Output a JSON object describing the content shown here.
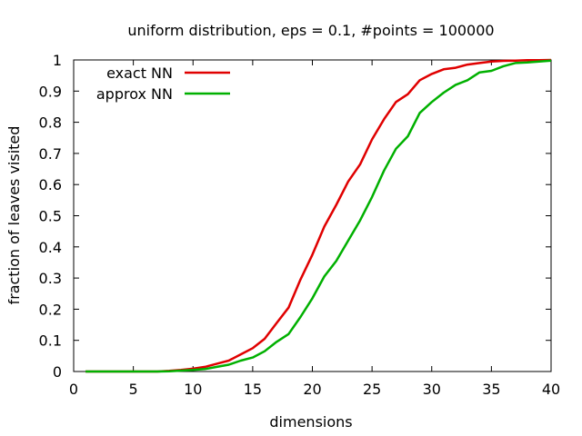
{
  "chart_data": {
    "type": "line",
    "title": "uniform distribution, eps = 0.1, #points = 100000",
    "xlabel": "dimensions",
    "ylabel": "fraction of leaves visited",
    "xlim": [
      0,
      40
    ],
    "ylim": [
      0,
      1
    ],
    "xticks": [
      0,
      5,
      10,
      15,
      20,
      25,
      30,
      35,
      40
    ],
    "yticks": [
      0,
      0.1,
      0.2,
      0.3,
      0.4,
      0.5,
      0.6,
      0.7,
      0.8,
      0.9,
      1
    ],
    "grid": false,
    "legend_position": "top-left",
    "series": [
      {
        "name": "exact NN",
        "color": "#e00000",
        "x": [
          1,
          2,
          3,
          4,
          5,
          6,
          7,
          8,
          9,
          10,
          11,
          12,
          13,
          14,
          15,
          16,
          17,
          18,
          19,
          20,
          21,
          22,
          23,
          24,
          25,
          26,
          27,
          28,
          29,
          30,
          31,
          32,
          33,
          34,
          35,
          36,
          37,
          38,
          39,
          40
        ],
        "y": [
          0,
          0,
          0,
          0,
          0,
          0,
          0,
          0.002,
          0.005,
          0.009,
          0.015,
          0.025,
          0.035,
          0.055,
          0.075,
          0.105,
          0.155,
          0.205,
          0.295,
          0.375,
          0.465,
          0.535,
          0.61,
          0.665,
          0.745,
          0.81,
          0.865,
          0.89,
          0.935,
          0.955,
          0.97,
          0.975,
          0.985,
          0.99,
          0.995,
          0.997,
          0.998,
          0.999,
          0.999,
          1.0
        ]
      },
      {
        "name": "approx NN",
        "color": "#00b000",
        "x": [
          1,
          2,
          3,
          4,
          5,
          6,
          7,
          8,
          9,
          10,
          11,
          12,
          13,
          14,
          15,
          16,
          17,
          18,
          19,
          20,
          21,
          22,
          23,
          24,
          25,
          26,
          27,
          28,
          29,
          30,
          31,
          32,
          33,
          34,
          35,
          36,
          37,
          38,
          39,
          40
        ],
        "y": [
          0,
          0,
          0,
          0,
          0,
          0,
          0,
          0.001,
          0.003,
          0.005,
          0.008,
          0.015,
          0.022,
          0.035,
          0.045,
          0.065,
          0.095,
          0.12,
          0.175,
          0.235,
          0.305,
          0.355,
          0.42,
          0.485,
          0.56,
          0.645,
          0.715,
          0.755,
          0.83,
          0.865,
          0.895,
          0.92,
          0.935,
          0.96,
          0.965,
          0.98,
          0.99,
          0.992,
          0.995,
          0.998
        ]
      }
    ]
  }
}
